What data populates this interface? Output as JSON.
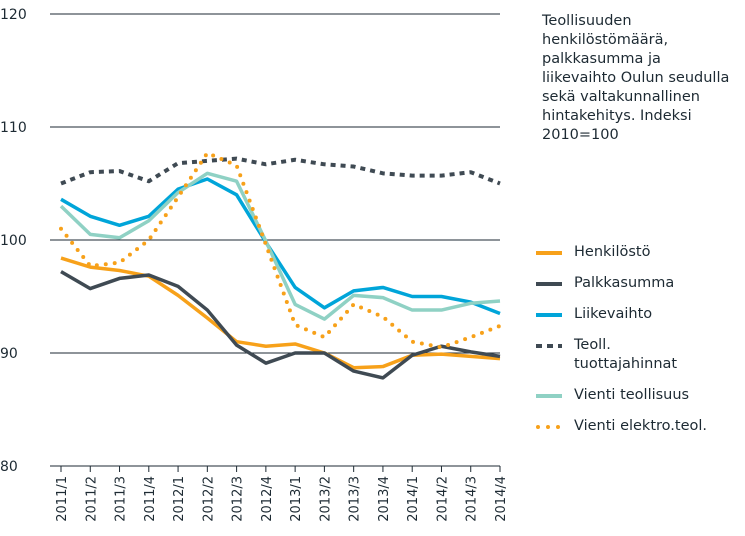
{
  "chart_data": {
    "type": "line",
    "title": "Teollisuuden henkilöstömäärä, palkkasumma ja liikevaihto Oulun seudulla sekä valtakunnallinen hintakehitys. Indeksi 2010=100",
    "categories": [
      "2011/1",
      "2011/2",
      "2011/3",
      "2011/4",
      "2012/1",
      "2012/2",
      "2012/3",
      "2012/4",
      "2013/1",
      "2013/2",
      "2013/3",
      "2013/4",
      "2014/1",
      "2014/2",
      "2014/3",
      "2014/4"
    ],
    "series": [
      {
        "name": "Henkilöstö",
        "color": "#f7a11a",
        "style": "solid",
        "values": [
          98.4,
          97.6,
          97.3,
          96.8,
          95.1,
          93.1,
          91.0,
          90.6,
          90.8,
          90.0,
          88.7,
          88.8,
          89.8,
          89.9,
          89.7,
          89.5
        ]
      },
      {
        "name": "Palkkasumma",
        "color": "#3f4a53",
        "style": "solid",
        "values": [
          97.2,
          95.7,
          96.6,
          96.9,
          95.9,
          93.8,
          90.7,
          89.1,
          90.0,
          90.0,
          88.4,
          87.8,
          89.8,
          90.6,
          90.1,
          89.7
        ]
      },
      {
        "name": "Liikevaihto",
        "color": "#00a5d9",
        "style": "solid",
        "values": [
          103.6,
          102.1,
          101.3,
          102.1,
          104.5,
          105.4,
          104.0,
          99.8,
          95.8,
          94.0,
          95.5,
          95.8,
          95.0,
          95.0,
          94.5,
          93.5
        ]
      },
      {
        "name": "Teoll. tuottajahinnat",
        "color": "#3f4a53",
        "style": "dashed",
        "values": [
          105.0,
          106.0,
          106.1,
          105.2,
          106.8,
          107.0,
          107.2,
          106.7,
          107.1,
          106.7,
          106.5,
          105.9,
          105.7,
          105.7,
          106.0,
          105.0
        ]
      },
      {
        "name": "Vienti teollisuus",
        "color": "#8fd1c4",
        "style": "solid",
        "values": [
          103.0,
          100.5,
          100.2,
          101.7,
          104.2,
          105.9,
          105.2,
          99.9,
          94.3,
          93.0,
          95.1,
          94.9,
          93.8,
          93.8,
          94.4,
          94.6
        ]
      },
      {
        "name": "Vienti elektro.teol.",
        "color": "#f7a11a",
        "style": "dotted",
        "values": [
          101.0,
          97.7,
          98.0,
          100.0,
          103.8,
          107.7,
          106.6,
          99.6,
          92.5,
          91.4,
          94.3,
          93.2,
          91.0,
          90.5,
          91.4,
          92.4
        ]
      }
    ],
    "ylim": [
      80,
      120
    ],
    "yticks": [
      80,
      90,
      100,
      110,
      120
    ],
    "grid": true
  }
}
